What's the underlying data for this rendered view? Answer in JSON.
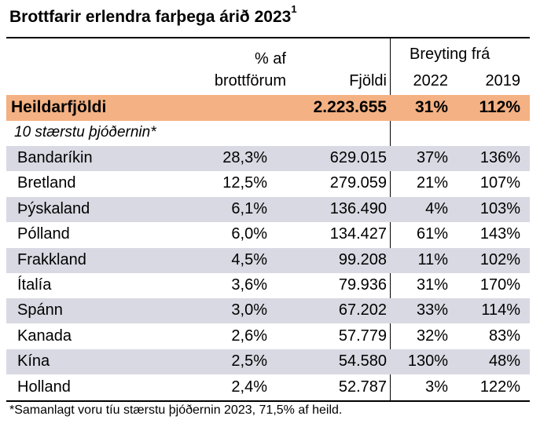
{
  "title": "Brottfarir erlendra farþega árið 2023",
  "title_sup": "1",
  "headers": {
    "pct_line1": "% af",
    "pct_line2": "brottförum",
    "count": "Fjöldi",
    "change_group": "Breyting frá",
    "y2022": "2022",
    "y2019": "2019"
  },
  "total": {
    "label": "Heildarfjöldi",
    "pct": "",
    "count": "2.223.655",
    "y2022": "31%",
    "y2019": "112%"
  },
  "subheading": "10 stærstu þjóðernin*",
  "rows": [
    {
      "country": "Bandaríkin",
      "pct": "28,3%",
      "count": "629.015",
      "y2022": "37%",
      "y2019": "136%"
    },
    {
      "country": "Bretland",
      "pct": "12,5%",
      "count": "279.059",
      "y2022": "21%",
      "y2019": "107%"
    },
    {
      "country": "Þýskaland",
      "pct": "6,1%",
      "count": "136.490",
      "y2022": "4%",
      "y2019": "103%"
    },
    {
      "country": "Pólland",
      "pct": "6,0%",
      "count": "134.427",
      "y2022": "61%",
      "y2019": "143%"
    },
    {
      "country": "Frakkland",
      "pct": "4,5%",
      "count": "99.208",
      "y2022": "11%",
      "y2019": "102%"
    },
    {
      "country": "Ítalía",
      "pct": "3,6%",
      "count": "79.936",
      "y2022": "31%",
      "y2019": "170%"
    },
    {
      "country": "Spánn",
      "pct": "3,0%",
      "count": "67.202",
      "y2022": "33%",
      "y2019": "114%"
    },
    {
      "country": "Kanada",
      "pct": "2,6%",
      "count": "57.779",
      "y2022": "32%",
      "y2019": "83%"
    },
    {
      "country": "Kína",
      "pct": "2,5%",
      "count": "54.580",
      "y2022": "130%",
      "y2019": "48%"
    },
    {
      "country": "Holland",
      "pct": "2,4%",
      "count": "52.787",
      "y2022": "3%",
      "y2019": "122%"
    }
  ],
  "footnote": "*Samanlagt voru tíu stærstu þjóðernin 2023, 71,5% af heild.",
  "colors": {
    "total_row": "#f4b183",
    "shaded_row": "#d9d9e3"
  }
}
